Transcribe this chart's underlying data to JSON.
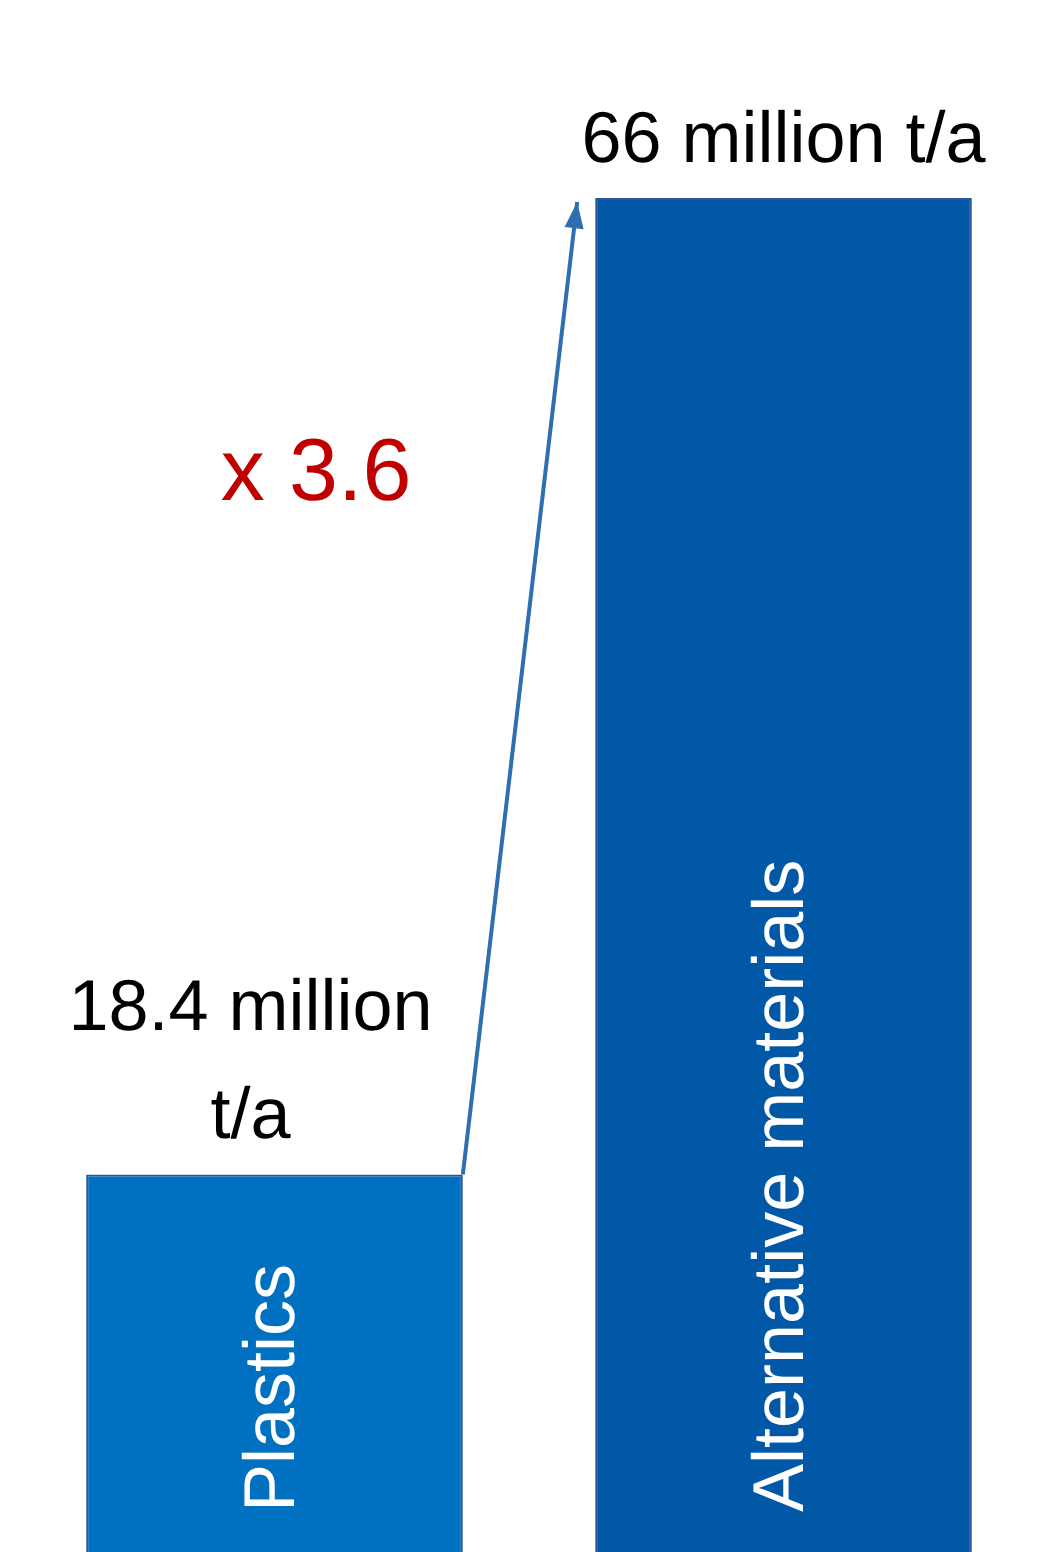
{
  "chart_data": {
    "type": "bar",
    "categories": [
      "Plastics",
      "Alternative materials"
    ],
    "values": [
      18.4,
      66
    ],
    "colors": [
      "#0070c0",
      "#0058a6"
    ],
    "value_labels": [
      "18.4 million t/a",
      "66 million t/a"
    ],
    "tick_labels": false,
    "legend": false,
    "annotations": [
      "x 3.6"
    ]
  }
}
